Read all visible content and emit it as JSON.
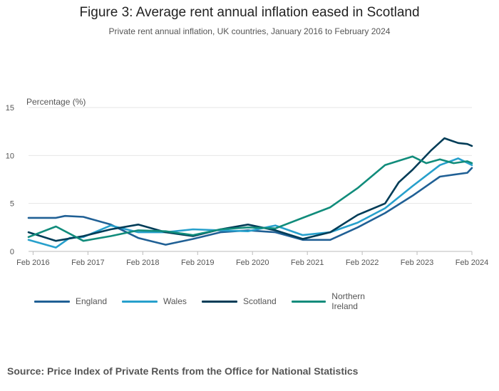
{
  "header": {
    "title": "Figure 3: Average rent annual inflation eased in Scotland",
    "subtitle": "Private rent annual inflation, UK countries, January 2016 to February 2024"
  },
  "footer": {
    "source": "Source: Price Index of Private Rents from the Office for National Statistics"
  },
  "chart_data": {
    "type": "line",
    "ylabel": "Percentage (%)",
    "ylim": [
      0,
      15
    ],
    "yticks": [
      "0",
      "5",
      "10",
      "15"
    ],
    "x_range": [
      "Jan 2016",
      "Feb 2024"
    ],
    "xtick_labels": [
      "Feb 2016",
      "Feb 2017",
      "Feb 2018",
      "Feb 2019",
      "Feb 2020",
      "Feb 2021",
      "Feb 2022",
      "Feb 2023",
      "Feb 2024"
    ],
    "grid": true,
    "legend_position": "bottom",
    "series": [
      {
        "name": "England",
        "color": "#206095",
        "points": [
          [
            "Jan 2016",
            3.5
          ],
          [
            "Jul 2016",
            3.5
          ],
          [
            "Sep 2016",
            3.7
          ],
          [
            "Jan 2017",
            3.6
          ],
          [
            "Jul 2017",
            2.8
          ],
          [
            "Jan 2018",
            1.4
          ],
          [
            "Jul 2018",
            0.7
          ],
          [
            "Jan 2019",
            1.3
          ],
          [
            "Jul 2019",
            2.0
          ],
          [
            "Jan 2020",
            2.2
          ],
          [
            "Jul 2020",
            2.0
          ],
          [
            "Jan 2021",
            1.2
          ],
          [
            "Jul 2021",
            1.2
          ],
          [
            "Jan 2022",
            2.5
          ],
          [
            "Jul 2022",
            4.0
          ],
          [
            "Jan 2023",
            5.8
          ],
          [
            "Jul 2023",
            7.8
          ],
          [
            "Jan 2024",
            8.2
          ],
          [
            "Feb 2024",
            8.7
          ]
        ]
      },
      {
        "name": "Wales",
        "color": "#27a0cc",
        "points": [
          [
            "Jan 2016",
            1.2
          ],
          [
            "Jul 2016",
            0.4
          ],
          [
            "Oct 2016",
            1.4
          ],
          [
            "Jan 2017",
            1.5
          ],
          [
            "Jul 2017",
            2.7
          ],
          [
            "Jan 2018",
            2.0
          ],
          [
            "Jul 2018",
            2.0
          ],
          [
            "Jan 2019",
            2.3
          ],
          [
            "Jul 2019",
            2.2
          ],
          [
            "Jan 2020",
            2.1
          ],
          [
            "Jul 2020",
            2.7
          ],
          [
            "Jan 2021",
            1.7
          ],
          [
            "Jul 2021",
            2.0
          ],
          [
            "Jan 2022",
            3.0
          ],
          [
            "Jul 2022",
            4.5
          ],
          [
            "Jan 2023",
            6.8
          ],
          [
            "Jul 2023",
            9.0
          ],
          [
            "Nov 2023",
            9.7
          ],
          [
            "Feb 2024",
            9.0
          ]
        ]
      },
      {
        "name": "Scotland",
        "color": "#003c57",
        "points": [
          [
            "Jan 2016",
            2.0
          ],
          [
            "Jul 2016",
            1.1
          ],
          [
            "Jan 2017",
            1.6
          ],
          [
            "Jul 2017",
            2.3
          ],
          [
            "Jan 2018",
            2.8
          ],
          [
            "Jul 2018",
            2.0
          ],
          [
            "Jan 2019",
            1.6
          ],
          [
            "Jul 2019",
            2.3
          ],
          [
            "Jan 2020",
            2.8
          ],
          [
            "Jul 2020",
            2.2
          ],
          [
            "Jan 2021",
            1.3
          ],
          [
            "Jul 2021",
            2.0
          ],
          [
            "Jan 2022",
            3.8
          ],
          [
            "Jul 2022",
            5.0
          ],
          [
            "Oct 2022",
            7.2
          ],
          [
            "Jan 2023",
            8.5
          ],
          [
            "May 2023",
            10.5
          ],
          [
            "Aug 2023",
            11.8
          ],
          [
            "Nov 2023",
            11.3
          ],
          [
            "Jan 2024",
            11.2
          ],
          [
            "Feb 2024",
            11.0
          ]
        ]
      },
      {
        "name": "Northern Ireland",
        "color": "#118c7b",
        "points": [
          [
            "Jan 2016",
            1.5
          ],
          [
            "Jul 2016",
            2.6
          ],
          [
            "Jan 2017",
            1.1
          ],
          [
            "Jul 2017",
            1.6
          ],
          [
            "Jan 2018",
            2.2
          ],
          [
            "Jul 2018",
            2.1
          ],
          [
            "Jan 2019",
            1.7
          ],
          [
            "Jul 2019",
            2.3
          ],
          [
            "Jan 2020",
            2.5
          ],
          [
            "Jul 2020",
            2.4
          ],
          [
            "Jan 2021",
            3.5
          ],
          [
            "Jul 2021",
            4.6
          ],
          [
            "Jan 2022",
            6.6
          ],
          [
            "Jul 2022",
            9.0
          ],
          [
            "Jan 2023",
            9.9
          ],
          [
            "Apr 2023",
            9.2
          ],
          [
            "Jul 2023",
            9.6
          ],
          [
            "Oct 2023",
            9.2
          ],
          [
            "Jan 2024",
            9.4
          ],
          [
            "Feb 2024",
            9.2
          ]
        ]
      }
    ]
  }
}
